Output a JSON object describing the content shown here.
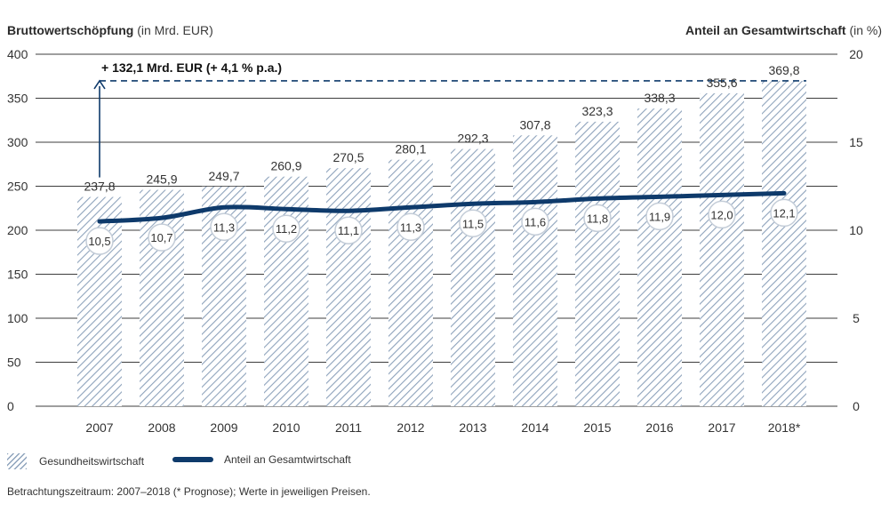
{
  "header": {
    "left_title": "Bruttowertschöpfung",
    "left_unit": "(in Mrd. EUR)",
    "right_title": "Anteil an Gesamtwirtschaft",
    "right_unit": "(in %)"
  },
  "annotation": "+ 132,1 Mrd. EUR (+ 4,1 % p.a.)",
  "legend": {
    "bars": "Gesundheitswirtschaft",
    "line": "Anteil an Gesamtwirtschaft"
  },
  "footnote": "Betrachtungszeitraum: 2007–2018 (* Prognose); Werte in jeweiligen Preisen.",
  "colors": {
    "hatch": "#8ea3bc",
    "line": "#0e3a6b",
    "grid": "#3c3c3c",
    "marker_border": "#c4cdd8"
  },
  "chart_data": {
    "type": "bar",
    "categories": [
      "2007",
      "2008",
      "2009",
      "2010",
      "2011",
      "2012",
      "2013",
      "2014",
      "2015",
      "2016",
      "2017",
      "2018*"
    ],
    "series": [
      {
        "name": "Gesundheitswirtschaft",
        "type": "bar",
        "axis": "left",
        "values": [
          237.8,
          245.9,
          249.7,
          260.9,
          270.5,
          280.1,
          292.3,
          307.8,
          323.3,
          338.3,
          355.6,
          369.8
        ],
        "labels": [
          "237,8",
          "245,9",
          "249,7",
          "260,9",
          "270,5",
          "280,1",
          "292,3",
          "307,8",
          "323,3",
          "338,3",
          "355,6",
          "369,8"
        ]
      },
      {
        "name": "Anteil an Gesamtwirtschaft",
        "type": "line",
        "axis": "right",
        "values": [
          10.5,
          10.7,
          11.3,
          11.2,
          11.1,
          11.3,
          11.5,
          11.6,
          11.8,
          11.9,
          12.0,
          12.1
        ],
        "labels": [
          "10,5",
          "10,7",
          "11,3",
          "11,2",
          "11,1",
          "11,3",
          "11,5",
          "11,6",
          "11,8",
          "11,9",
          "12,0",
          "12,1"
        ]
      }
    ],
    "ylim_left": [
      0,
      400
    ],
    "yticks_left": [
      "0",
      "50",
      "100",
      "150",
      "200",
      "250",
      "300",
      "350",
      "400"
    ],
    "ylim_right": [
      0,
      20
    ],
    "yticks_right": [
      "0",
      "5",
      "10",
      "15",
      "20"
    ],
    "grid": true,
    "legend_position": "bottom-left"
  }
}
